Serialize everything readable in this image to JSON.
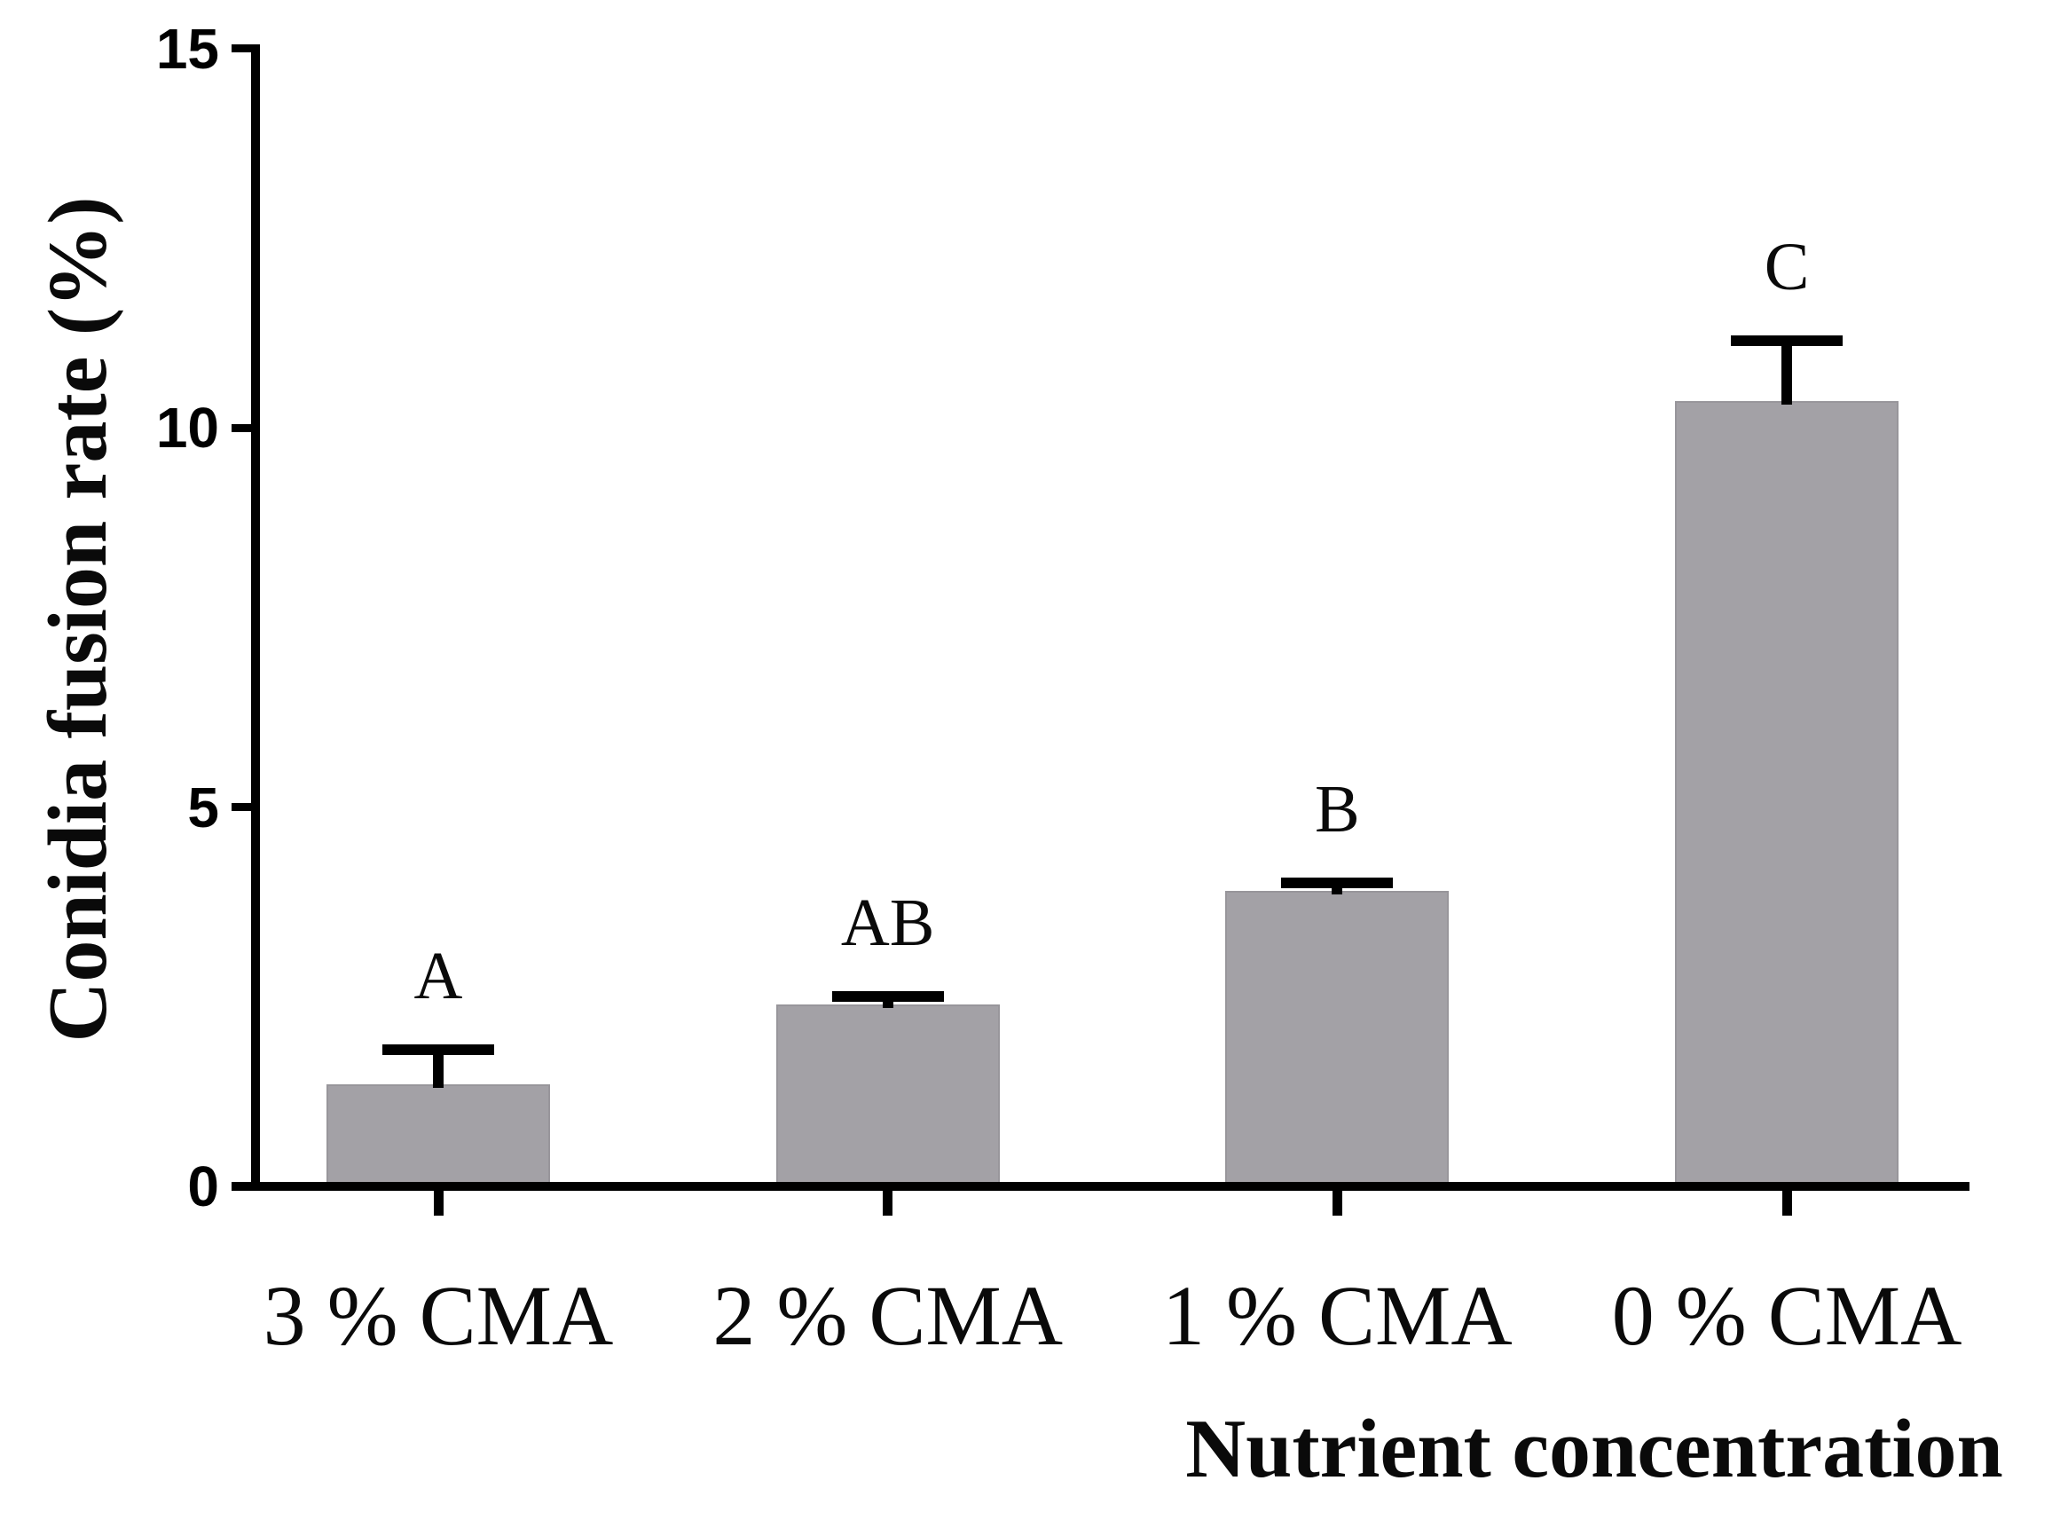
{
  "figure": {
    "description": "Grouped-letter bar chart of conidia fusion rate versus nutrient concentration",
    "background_color": "#ffffff",
    "text_color": "#0a0a0a"
  },
  "chart_data": {
    "type": "bar",
    "title": "",
    "xlabel": "Nutrient concentration",
    "ylabel": "Conidia fusion rate (%)",
    "categories": [
      "3 % CMA",
      "2 % CMA",
      "1 % CMA",
      "0 % CMA"
    ],
    "values": [
      1.35,
      2.4,
      3.9,
      10.35
    ],
    "error_plus": [
      0.45,
      0.1,
      0.1,
      0.8
    ],
    "sig_labels": [
      "A",
      "AB",
      "B",
      "C"
    ],
    "yticks": [
      0,
      5,
      10,
      15
    ],
    "ylim": [
      0,
      15
    ],
    "grid": false,
    "legend": "none",
    "bar_color": "#a3a1a6",
    "axis_color": "#000000",
    "error_bar_color": "#000000"
  }
}
